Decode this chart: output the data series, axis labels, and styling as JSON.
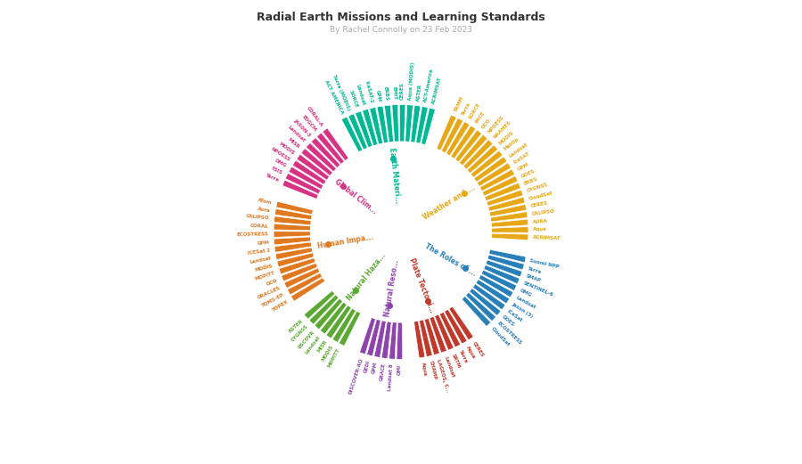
{
  "title": "Radial Earth Missions and Learning Standards",
  "subtitle": "By Rachel Connolly on 23 Feb 2023",
  "background_color": "#ffffff",
  "segments": [
    {
      "name": "Global Clim...",
      "color": "#d63384",
      "missions": [
        "CORAL-A",
        "EDGCM",
        "JASON-3",
        "Landsat",
        "MISR",
        "MODIS",
        "NPOESS",
        "OMG",
        "TSIS",
        "Terra"
      ]
    },
    {
      "name": "Human Impa...",
      "color": "#e07820",
      "missions": [
        "ATom",
        "Aura",
        "CALIPSO",
        "CORAL",
        "ECOSTRESS",
        "GPM",
        "ICESat 2",
        "Landsat",
        "MODIS",
        "MOPITT",
        "OCO",
        "ORACLES",
        "TOMS-EP",
        "TOPEX"
      ]
    },
    {
      "name": "Natural Haza...",
      "color": "#5ba832",
      "missions": [
        "ASTER",
        "CYGNSS",
        "DSCOVR",
        "Landsat",
        "MISR",
        "MODIS",
        "MOPITT"
      ]
    },
    {
      "name": "Natural Reso...",
      "color": "#8e44ad",
      "missions": [
        "DISCOVER-AQ",
        "GEDI",
        "GPM",
        "GRACE",
        "Landsat 8",
        "OMI"
      ]
    },
    {
      "name": "Plate Tectoni...",
      "color": "#c0392b",
      "missions": [
        "Aqua",
        "CHAMP",
        "LAGEOS, C...",
        "Landsat",
        "SRTM",
        "Terra",
        "Aqua",
        "CERES"
      ]
    },
    {
      "name": "The Roles of ...",
      "color": "#2980b9",
      "missions": [
        "CloudSat",
        "ECOSTRESS",
        "GOES",
        "ICeSat",
        "Jason (3)",
        "Landsat",
        "OMG",
        "SENTINEL-6",
        "SMAP",
        "Terra",
        "Suomi NPP"
      ]
    },
    {
      "name": "Weather and ...",
      "color": "#e6a817",
      "missions": [
        "ACRIMSAT",
        "Aqua",
        "AURA",
        "CALIPSO",
        "CERES",
        "CloudSat",
        "CYGNSS",
        "ERBS",
        "GOES",
        "GPM",
        "IceSAT",
        "Landsat",
        "MetOp",
        "MODIS",
        "NAAMES",
        "NPOESS",
        "OCO",
        "PACE",
        "SORCE",
        "Terra",
        "TRMM"
      ]
    },
    {
      "name": "Earth Materi...",
      "color": "#00b894",
      "missions": [
        "ACRIMSAT",
        "ACT-America",
        "ASTER",
        "Aqua (MODIS)",
        "CERES",
        "EMIT",
        "ERBS",
        "GPM",
        "IceSAT-2",
        "Landsat",
        "SORCE",
        "Terra (MODIS)",
        "ACT AMERICA"
      ]
    }
  ]
}
